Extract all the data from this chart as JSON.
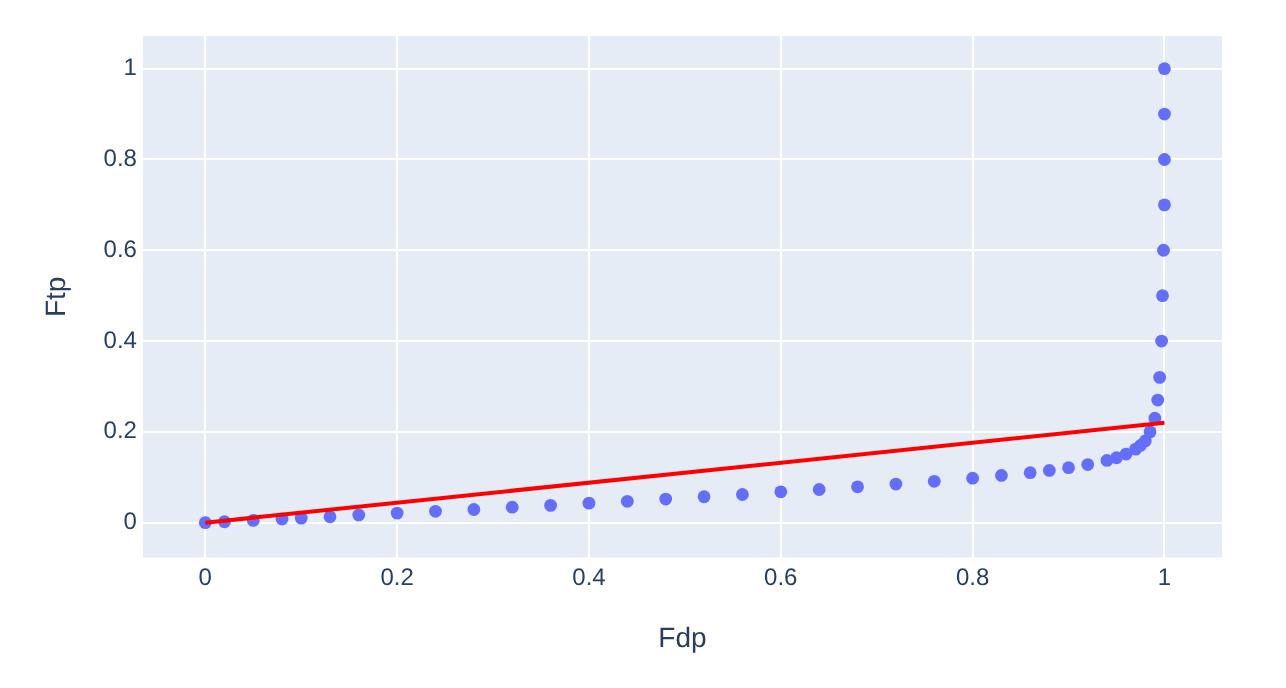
{
  "chart_data": {
    "type": "scatter",
    "xlabel": "Fdp",
    "ylabel": "Ftp",
    "xlim": [
      -0.065,
      1.06
    ],
    "ylim": [
      -0.077,
      1.072
    ],
    "xticks": [
      0,
      0.2,
      0.4,
      0.6,
      0.8,
      1
    ],
    "yticks": [
      0,
      0.2,
      0.4,
      0.6,
      0.8,
      1
    ],
    "grid": true,
    "legend": false,
    "series": [
      {
        "marker": "circle",
        "color": "#636efa",
        "x": [
          0,
          0.02,
          0.05,
          0.08,
          0.1,
          0.13,
          0.16,
          0.2,
          0.24,
          0.28,
          0.32,
          0.36,
          0.4,
          0.44,
          0.48,
          0.52,
          0.56,
          0.6,
          0.64,
          0.68,
          0.72,
          0.76,
          0.8,
          0.83,
          0.86,
          0.88,
          0.9,
          0.92,
          0.94,
          0.95,
          0.96,
          0.97,
          0.975,
          0.98,
          0.985,
          0.99,
          0.993,
          0.995,
          0.997,
          0.998,
          0.999,
          1,
          1,
          1,
          1
        ],
        "values": [
          0,
          0.002,
          0.005,
          0.008,
          0.01,
          0.013,
          0.017,
          0.021,
          0.025,
          0.029,
          0.034,
          0.038,
          0.043,
          0.047,
          0.052,
          0.057,
          0.062,
          0.068,
          0.073,
          0.079,
          0.085,
          0.091,
          0.098,
          0.104,
          0.11,
          0.115,
          0.121,
          0.128,
          0.137,
          0.143,
          0.151,
          0.162,
          0.17,
          0.18,
          0.2,
          0.23,
          0.27,
          0.32,
          0.4,
          0.5,
          0.6,
          0.7,
          0.8,
          0.9,
          1
        ]
      },
      {
        "type": "line",
        "color": "#ff0000",
        "x": [
          0,
          1
        ],
        "values": [
          0,
          0.22
        ]
      }
    ]
  }
}
